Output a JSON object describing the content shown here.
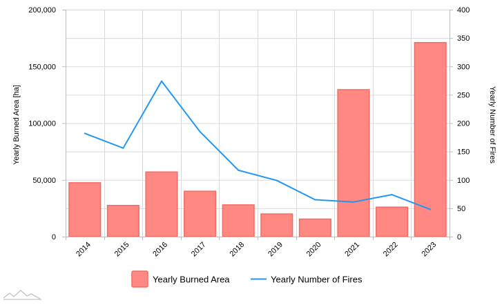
{
  "chart_data": {
    "type": "bar",
    "categories": [
      "2014",
      "2015",
      "2016",
      "2017",
      "2018",
      "2019",
      "2020",
      "2021",
      "2022",
      "2023"
    ],
    "series": [
      {
        "name": "Yearly Burned Area",
        "type": "bar",
        "axis": "left",
        "color": "#ff8882",
        "stroke": "#f06b64",
        "values": [
          47500,
          27500,
          57000,
          40000,
          28000,
          20000,
          15500,
          129500,
          26000,
          171000
        ]
      },
      {
        "name": "Yearly Number of Fires",
        "type": "line",
        "axis": "right",
        "color": "#2196f3",
        "values": [
          182,
          156,
          274,
          185,
          117,
          99,
          65,
          61,
          74,
          48
        ]
      }
    ],
    "ylabel": "Yearly Burned Area [ha]",
    "y2label": "Yearly Number of Fires",
    "ylim": [
      0,
      200000
    ],
    "y2lim": [
      0,
      400
    ],
    "yticks": [
      "0",
      "50,000",
      "100,000",
      "150,000",
      "200,000"
    ],
    "y2ticks": [
      "0",
      "50",
      "100",
      "150",
      "200",
      "250",
      "300",
      "350",
      "400"
    ],
    "grid": true,
    "legend": "bottom-center"
  },
  "icons": {
    "watermark": "mountain-logo-icon"
  }
}
